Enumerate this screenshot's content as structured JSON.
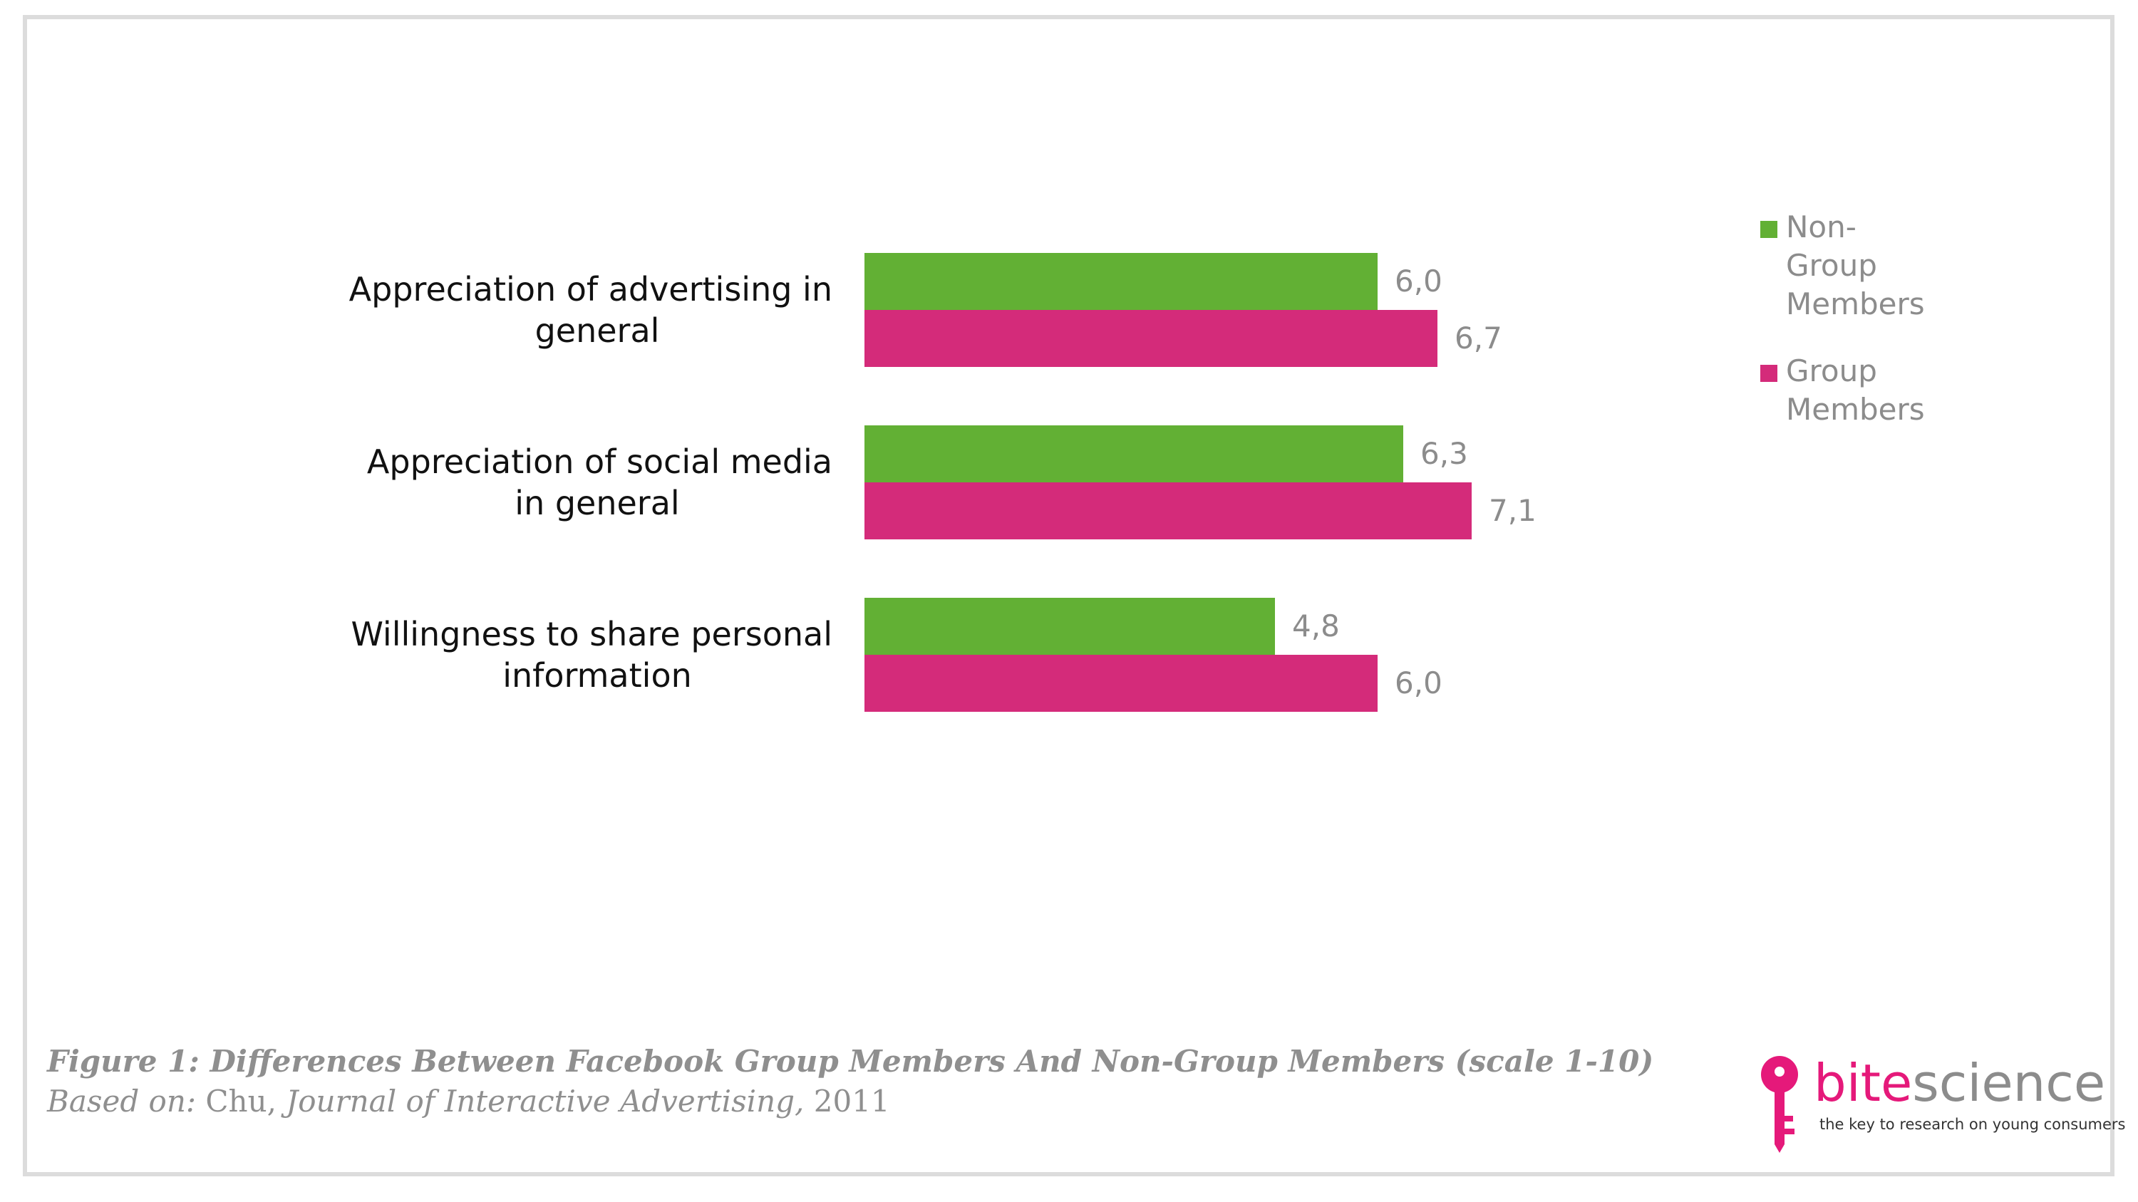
{
  "chart_data": {
    "type": "bar",
    "orientation": "horizontal",
    "categories": [
      "Appreciation of advertising in general",
      "Appreciation of social media in general",
      "Willingness to share personal information"
    ],
    "series": [
      {
        "name": "Non-Group Members",
        "values": [
          6.0,
          6.3,
          4.8
        ],
        "value_labels": [
          "6,0",
          "6,3",
          "4,8"
        ],
        "color": "#62b034"
      },
      {
        "name": "Group Members",
        "values": [
          6.7,
          7.1,
          6.0
        ],
        "value_labels": [
          "6,7",
          "7,1",
          "6,0"
        ],
        "color": "#d42b7a"
      }
    ],
    "xlim": [
      0,
      10
    ],
    "grid": false,
    "legend_position": "top-right"
  },
  "legend": {
    "items": [
      {
        "label": "Non-\nGroup\nMembers",
        "color": "#62b034"
      },
      {
        "label": "Group\nMembers",
        "color": "#d42b7a"
      }
    ]
  },
  "caption": {
    "title": "Figure 1:  Differences Between Facebook Group Members And Non-Group Members (scale 1-10)",
    "based_on": "Based on:",
    "author": "Chu,",
    "journal": "Journal of  Interactive Advertising,",
    "year": "2011"
  },
  "logo": {
    "brand_part1": "bite",
    "brand_part2": "science",
    "tagline": "the key to research on young consumers",
    "key_icon": "key-icon",
    "brand_color": "#e5197a"
  }
}
